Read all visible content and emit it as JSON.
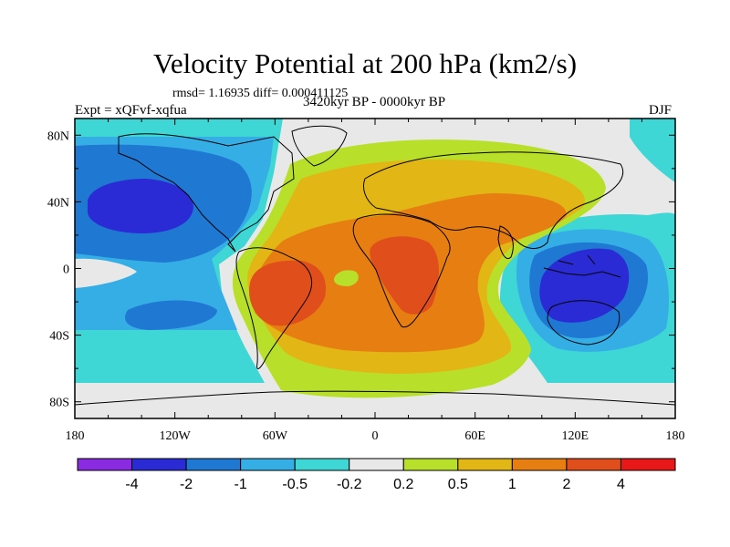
{
  "header": {
    "title": "Velocity Potential at 200 hPa (km2/s)",
    "stats": "rmsd= 1.16935 diff= 0.000411125",
    "experiment": "Expt = xQFvf-xqfua",
    "period": "3420kyr BP - 0000kyr BP",
    "season": "DJF"
  },
  "map": {
    "projection": "cylindrical-equidistant",
    "lon_range": [
      -180,
      180
    ],
    "lat_range": [
      -90,
      90
    ],
    "x_ticks": [
      {
        "lon": -180,
        "label": "180"
      },
      {
        "lon": -120,
        "label": "120W"
      },
      {
        "lon": -60,
        "label": "60W"
      },
      {
        "lon": 0,
        "label": "0"
      },
      {
        "lon": 60,
        "label": "60E"
      },
      {
        "lon": 120,
        "label": "120E"
      },
      {
        "lon": 180,
        "label": "180"
      }
    ],
    "y_ticks": [
      {
        "lat": 80,
        "label": "80N"
      },
      {
        "lat": 40,
        "label": "40N"
      },
      {
        "lat": 0,
        "label": "0"
      },
      {
        "lat": -40,
        "label": "40S"
      },
      {
        "lat": -80,
        "label": "80S"
      }
    ]
  },
  "colorbar": {
    "colors": [
      "#8a2be2",
      "#2b2bd6",
      "#1f78d2",
      "#35aee6",
      "#3fd6d6",
      "#e8e8e8",
      "#b8e02a",
      "#e2b614",
      "#e67e12",
      "#e04e1c",
      "#e81818"
    ],
    "labels": [
      "-4",
      "-2",
      "-1",
      "-0.5",
      "-0.2",
      "0.2",
      "0.5",
      "1",
      "2",
      "4"
    ]
  }
}
